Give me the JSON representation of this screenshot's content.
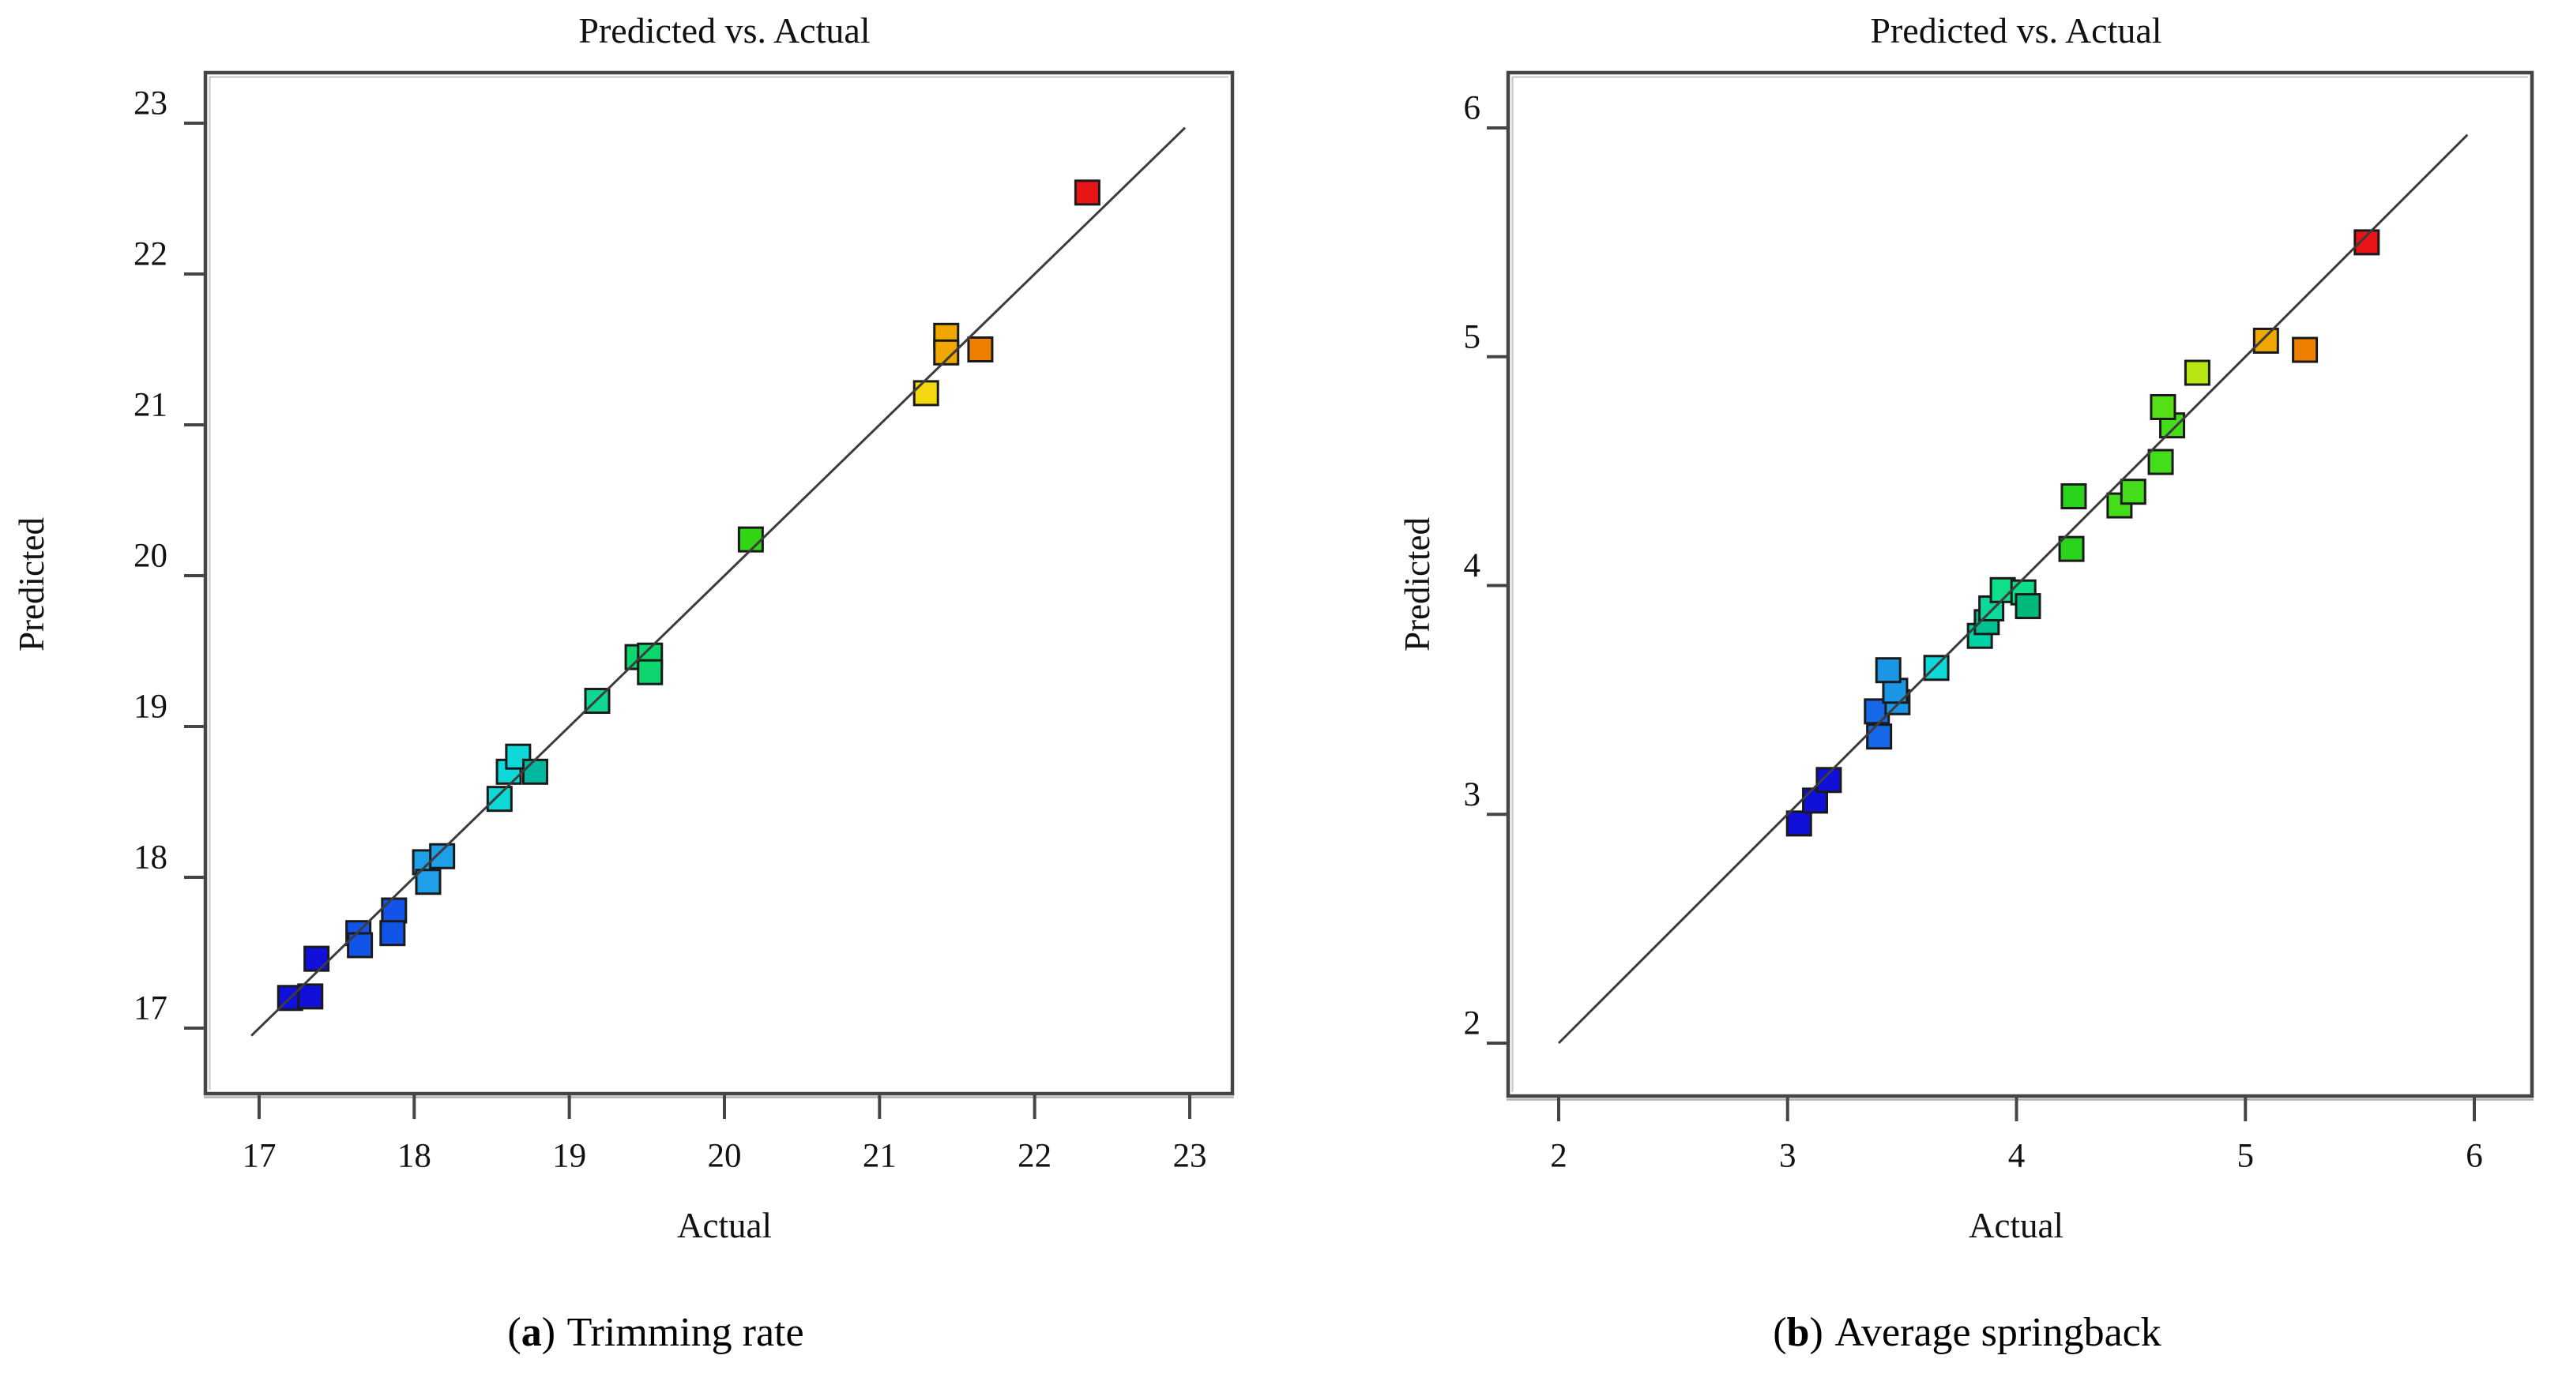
{
  "figure": {
    "background": "#ffffff",
    "panels": [
      {
        "caption": {
          "open": "(",
          "letter": "a",
          "close": ")",
          "text": "Trimming rate"
        }
      },
      {
        "caption": {
          "open": "(",
          "letter": "b",
          "close": ")",
          "text": "Average springback"
        }
      }
    ]
  },
  "chart_data": [
    {
      "type": "scatter",
      "title": "Predicted vs. Actual",
      "xlabel": "Actual",
      "ylabel": "Predicted",
      "xlim": [
        17,
        23
      ],
      "ylim": [
        17,
        23
      ],
      "xticks": [
        17,
        18,
        19,
        20,
        21,
        22,
        23
      ],
      "yticks": [
        17,
        18,
        19,
        20,
        21,
        22,
        23
      ],
      "grid": false,
      "legend": "none",
      "identity_line": {
        "from": 16.95,
        "to": 22.97,
        "color": "#3c3c3c"
      },
      "marker": {
        "shape": "square",
        "stroke": "#1a1a1a"
      },
      "points": [
        {
          "x": 17.2,
          "y": 17.2,
          "color": "#1010d8"
        },
        {
          "x": 17.33,
          "y": 17.21,
          "color": "#1010d8"
        },
        {
          "x": 17.37,
          "y": 17.46,
          "color": "#1010d8"
        },
        {
          "x": 17.64,
          "y": 17.63,
          "color": "#1254e8"
        },
        {
          "x": 17.65,
          "y": 17.55,
          "color": "#1254e8"
        },
        {
          "x": 17.87,
          "y": 17.78,
          "color": "#1254e8"
        },
        {
          "x": 17.86,
          "y": 17.63,
          "color": "#1254e8"
        },
        {
          "x": 18.07,
          "y": 18.1,
          "color": "#1f9fe8"
        },
        {
          "x": 18.18,
          "y": 18.14,
          "color": "#1f9fe8"
        },
        {
          "x": 18.09,
          "y": 17.97,
          "color": "#1f9fe8"
        },
        {
          "x": 18.55,
          "y": 18.52,
          "color": "#0fd8d8"
        },
        {
          "x": 18.61,
          "y": 18.7,
          "color": "#0fd8d8"
        },
        {
          "x": 18.67,
          "y": 18.8,
          "color": "#0fd8d8"
        },
        {
          "x": 18.78,
          "y": 18.7,
          "color": "#00b89e"
        },
        {
          "x": 19.18,
          "y": 19.17,
          "color": "#0fd895"
        },
        {
          "x": 19.44,
          "y": 19.46,
          "color": "#0ed66e"
        },
        {
          "x": 19.52,
          "y": 19.47,
          "color": "#0ed66e"
        },
        {
          "x": 19.52,
          "y": 19.36,
          "color": "#0ed66e"
        },
        {
          "x": 20.17,
          "y": 20.24,
          "color": "#33d414"
        },
        {
          "x": 21.3,
          "y": 21.21,
          "color": "#f2d80c"
        },
        {
          "x": 21.43,
          "y": 21.59,
          "color": "#f0a800"
        },
        {
          "x": 21.43,
          "y": 21.48,
          "color": "#f0a800"
        },
        {
          "x": 21.65,
          "y": 21.5,
          "color": "#ee7f00"
        },
        {
          "x": 22.34,
          "y": 22.54,
          "color": "#e81416"
        }
      ]
    },
    {
      "type": "scatter",
      "title": "Predicted vs. Actual",
      "xlabel": "Actual",
      "ylabel": "Predicted",
      "xlim": [
        2,
        6
      ],
      "ylim": [
        2,
        6
      ],
      "xticks": [
        2,
        3,
        4,
        5,
        6
      ],
      "yticks": [
        2,
        3,
        4,
        5,
        6
      ],
      "grid": false,
      "legend": "none",
      "identity_line": {
        "from": 2.0,
        "to": 5.97,
        "color": "#3c3c3c"
      },
      "marker": {
        "shape": "square",
        "stroke": "#1a1a1a"
      },
      "points": [
        {
          "x": 3.05,
          "y": 2.96,
          "color": "#1010d8"
        },
        {
          "x": 3.12,
          "y": 3.06,
          "color": "#1010d8"
        },
        {
          "x": 3.18,
          "y": 3.15,
          "color": "#1010d8"
        },
        {
          "x": 3.4,
          "y": 3.34,
          "color": "#1668e8"
        },
        {
          "x": 3.39,
          "y": 3.45,
          "color": "#1668e8"
        },
        {
          "x": 3.48,
          "y": 3.49,
          "color": "#1b96e6"
        },
        {
          "x": 3.47,
          "y": 3.54,
          "color": "#1b96e6"
        },
        {
          "x": 3.44,
          "y": 3.63,
          "color": "#1b96e6"
        },
        {
          "x": 3.65,
          "y": 3.64,
          "color": "#0fd8d8"
        },
        {
          "x": 3.84,
          "y": 3.78,
          "color": "#00d2a8"
        },
        {
          "x": 3.87,
          "y": 3.84,
          "color": "#00c092"
        },
        {
          "x": 3.89,
          "y": 3.9,
          "color": "#0fd89c"
        },
        {
          "x": 3.94,
          "y": 3.98,
          "color": "#0ee08a"
        },
        {
          "x": 4.03,
          "y": 3.97,
          "color": "#0ee08a"
        },
        {
          "x": 4.05,
          "y": 3.91,
          "color": "#00b87c"
        },
        {
          "x": 4.24,
          "y": 4.16,
          "color": "#2ad41c"
        },
        {
          "x": 4.25,
          "y": 4.39,
          "color": "#2ad41c"
        },
        {
          "x": 4.45,
          "y": 4.35,
          "color": "#44dd1a"
        },
        {
          "x": 4.51,
          "y": 4.41,
          "color": "#44dd1a"
        },
        {
          "x": 4.63,
          "y": 4.54,
          "color": "#44dd1a"
        },
        {
          "x": 4.68,
          "y": 4.7,
          "color": "#44dd1a"
        },
        {
          "x": 4.64,
          "y": 4.78,
          "color": "#55e018"
        },
        {
          "x": 4.79,
          "y": 4.93,
          "color": "#b8e612"
        },
        {
          "x": 5.09,
          "y": 5.07,
          "color": "#f0a800"
        },
        {
          "x": 5.26,
          "y": 5.03,
          "color": "#ee7f00"
        },
        {
          "x": 5.53,
          "y": 5.5,
          "color": "#e81416"
        }
      ]
    }
  ]
}
